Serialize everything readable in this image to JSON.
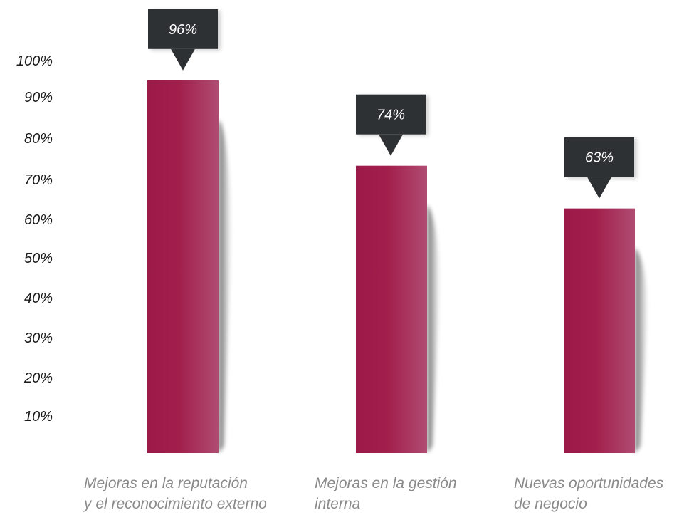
{
  "chart_data": {
    "type": "bar",
    "categories": [
      [
        "Mejoras en la reputación",
        "y el reconocimiento externo"
      ],
      [
        "Mejoras en la gestión",
        "interna"
      ],
      [
        "Nuevas oportunidades",
        "de negocio"
      ]
    ],
    "values": [
      96,
      74,
      63
    ],
    "value_labels": [
      "96%",
      "74%",
      "63%"
    ],
    "y_ticks": [
      "10%",
      "20%",
      "30%",
      "40%",
      "50%",
      "60%",
      "70%",
      "80%",
      "90%",
      "100%"
    ],
    "ylim": [
      0,
      100
    ],
    "grid": false,
    "colors": {
      "bar_dark": "#9c1a48",
      "bar_light": "#b14f73",
      "callout": "#2e3133",
      "category_text": "#8a8a8a"
    }
  }
}
